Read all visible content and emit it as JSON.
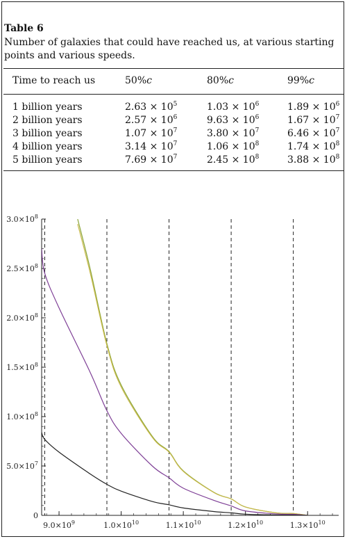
{
  "table": {
    "label": "Table 6",
    "caption": "Number of galaxies that could have reached us, at various starting points and various speeds.",
    "columns": [
      "Time to reach us",
      "50%c",
      "80%c",
      "99%c"
    ],
    "rows": [
      {
        "time": "1 billion years",
        "cells": [
          [
            "2.63",
            "5"
          ],
          [
            "1.03",
            "6"
          ],
          [
            "1.89",
            "6"
          ]
        ]
      },
      {
        "time": "2 billion years",
        "cells": [
          [
            "2.57",
            "6"
          ],
          [
            "9.63",
            "6"
          ],
          [
            "1.67",
            "7"
          ]
        ]
      },
      {
        "time": "3 billion years",
        "cells": [
          [
            "1.07",
            "7"
          ],
          [
            "3.80",
            "7"
          ],
          [
            "6.46",
            "7"
          ]
        ]
      },
      {
        "time": "4 billion years",
        "cells": [
          [
            "3.14",
            "7"
          ],
          [
            "1.06",
            "8"
          ],
          [
            "1.74",
            "8"
          ]
        ]
      },
      {
        "time": "5 billion years",
        "cells": [
          [
            "7.69",
            "7"
          ],
          [
            "2.45",
            "8"
          ],
          [
            "3.88",
            "8"
          ]
        ]
      }
    ]
  },
  "colors": {
    "green": "#8aa63a",
    "yellow": "#c9b94a",
    "purple": "#7e3f96",
    "black": "#222222",
    "axis": "#222222"
  },
  "chart_data": {
    "type": "line",
    "title": "",
    "xlabel": "",
    "ylabel": "",
    "xlim": [
      8720000000.0,
      13500000000.0
    ],
    "ylim": [
      0,
      300000000.0
    ],
    "x_ticks": [
      9000000000.0,
      10000000000.0,
      11000000000.0,
      12000000000.0,
      13000000000.0
    ],
    "x_tick_labels": [
      [
        "9.0",
        "9"
      ],
      [
        "1.0",
        "10"
      ],
      [
        "1.1",
        "10"
      ],
      [
        "1.2",
        "10"
      ],
      [
        "1.3",
        "10"
      ]
    ],
    "y_ticks": [
      0,
      50000000.0,
      100000000.0,
      150000000.0,
      200000000.0,
      250000000.0,
      300000000.0
    ],
    "y_tick_labels": [
      "0",
      [
        "5.0",
        "7"
      ],
      [
        "1.0",
        "8"
      ],
      [
        "1.5",
        "8"
      ],
      [
        "2.0",
        "8"
      ],
      [
        "2.5",
        "8"
      ],
      [
        "3.0",
        "8"
      ]
    ],
    "vertical_dashed_lines_x": [
      8770000000.0,
      9770000000.0,
      10770000000.0,
      11770000000.0,
      12770000000.0
    ],
    "series": [
      {
        "color": "green",
        "x": [
          9300000000.0,
          9500000000.0,
          9770000000.0,
          10000000000.0,
          10500000000.0,
          10770000000.0,
          11000000000.0,
          11500000000.0,
          11770000000.0,
          12000000000.0,
          12500000000.0,
          12770000000.0,
          13000000000.0
        ],
        "y": [
          300000000.0,
          250000000.0,
          174000000.0,
          132000000.0,
          80000000.0,
          64600000.0,
          45000000.0,
          23000000.0,
          16700000.0,
          8500000.0,
          2500000.0,
          1890000.0,
          0
        ]
      },
      {
        "color": "yellow",
        "x": [
          9300000000.0,
          9500000000.0,
          9770000000.0,
          10000000000.0,
          10500000000.0,
          10770000000.0,
          11000000000.0,
          11500000000.0,
          11770000000.0,
          12000000000.0,
          12500000000.0,
          12770000000.0,
          13000000000.0
        ],
        "y": [
          295000000.0,
          246000000.0,
          172000000.0,
          130000000.0,
          79000000.0,
          64000000.0,
          44500000.0,
          22800000.0,
          16600000.0,
          8400000.0,
          2450000.0,
          1850000.0,
          0
        ]
      },
      {
        "color": "purple",
        "x": [
          8720000000.0,
          8770000000.0,
          9000000000.0,
          9500000000.0,
          9770000000.0,
          10000000000.0,
          10500000000.0,
          10770000000.0,
          11000000000.0,
          11500000000.0,
          11770000000.0,
          12000000000.0,
          12500000000.0,
          12770000000.0,
          13000000000.0
        ],
        "y": [
          270000000.0,
          245000000.0,
          210000000.0,
          145000000.0,
          106000000.0,
          83000000.0,
          50000000.0,
          38000000.0,
          27500000.0,
          15000000.0,
          9600000.0,
          4500000.0,
          1400000.0,
          1030000.0,
          0
        ]
      },
      {
        "color": "black",
        "x": [
          8720000000.0,
          8770000000.0,
          9000000000.0,
          9500000000.0,
          9770000000.0,
          10000000000.0,
          10500000000.0,
          10770000000.0,
          11000000000.0,
          11500000000.0,
          11770000000.0,
          12000000000.0,
          12500000000.0,
          12770000000.0,
          13000000000.0
        ],
        "y": [
          84000000.0,
          76900000.0,
          64000000.0,
          42000000.0,
          31400000.0,
          24500000.0,
          14000000.0,
          10700000.0,
          7500000.0,
          3800000.0,
          2570000.0,
          1200000.0,
          350000.0,
          263000.0,
          0
        ]
      }
    ]
  }
}
